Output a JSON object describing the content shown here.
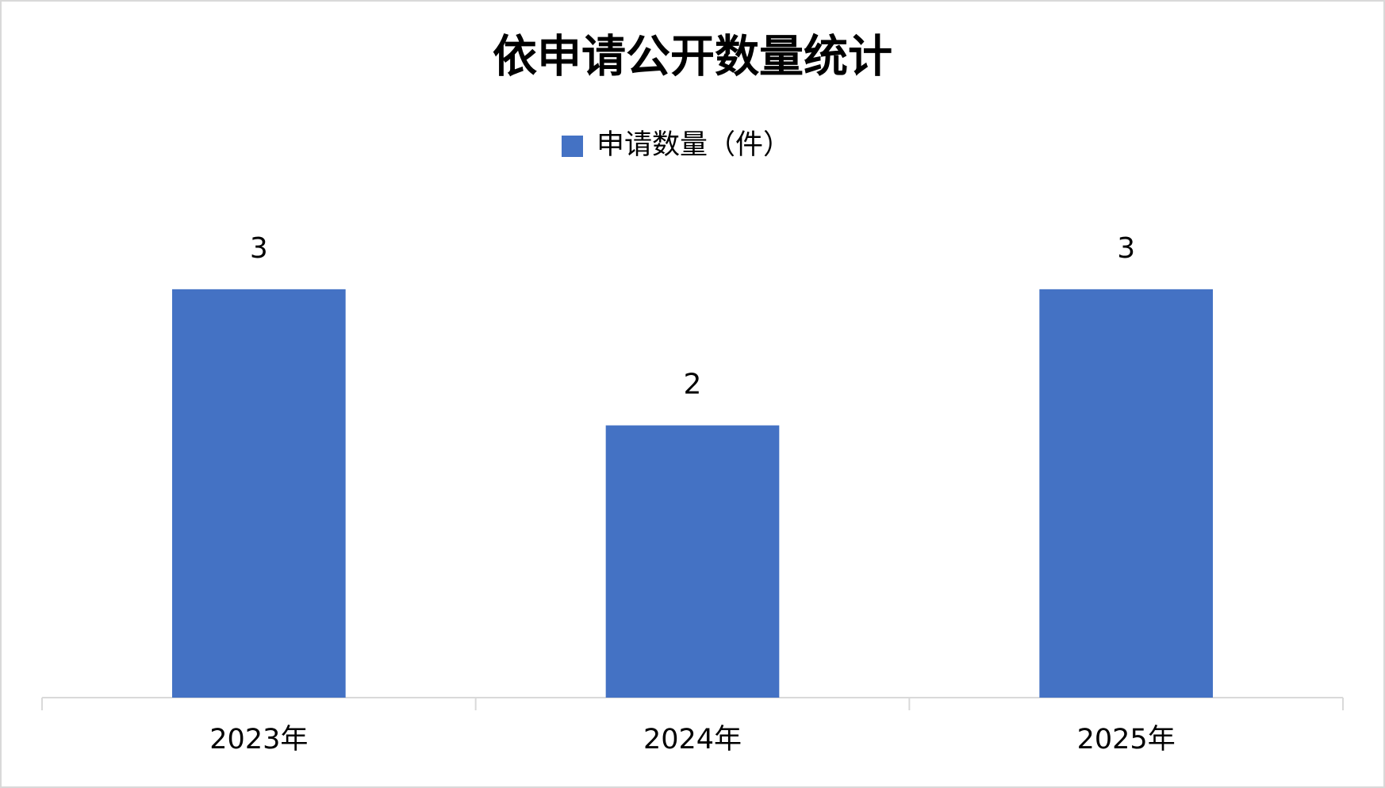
{
  "chart_data": {
    "type": "bar",
    "title": "依申请公开数量统计",
    "categories": [
      "2023年",
      "2024年",
      "2025年"
    ],
    "series": [
      {
        "name": "申请数量（件）",
        "color": "#4472c4",
        "values": [
          3,
          2,
          3
        ]
      }
    ],
    "ylim": [
      0,
      3.5
    ],
    "legend": "top"
  }
}
